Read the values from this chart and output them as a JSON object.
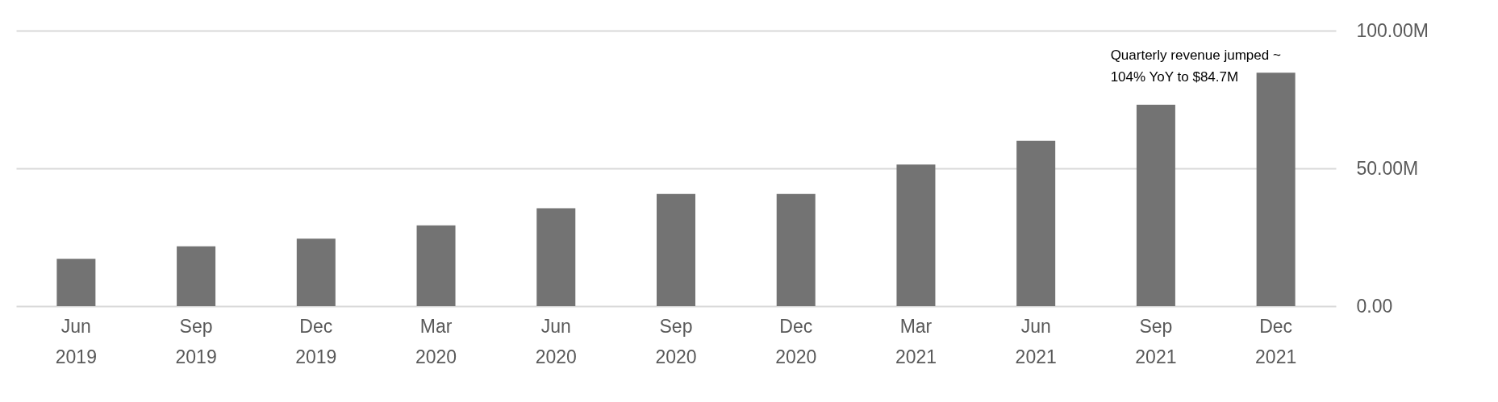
{
  "chart_data": {
    "type": "bar",
    "categories": [
      "Jun 2019",
      "Sep 2019",
      "Dec 2019",
      "Mar 2020",
      "Jun 2020",
      "Sep 2020",
      "Dec 2020",
      "Mar 2021",
      "Jun 2021",
      "Sep 2021",
      "Dec 2021"
    ],
    "values": [
      17.2,
      21.7,
      24.5,
      29.3,
      35.5,
      40.7,
      40.7,
      51.4,
      60,
      73.1,
      84.7
    ],
    "color": "#737373",
    "ylim": [
      0,
      100
    ],
    "yticks": [
      {
        "value": 0,
        "label": "0.00"
      },
      {
        "value": 50,
        "label": "50.00M"
      },
      {
        "value": 100,
        "label": "100.00M"
      }
    ],
    "grid": "y",
    "annotations": [
      {
        "text": "Quarterly revenue jumped ~\n104% YoY to $84.7M",
        "x": "Dec 2021",
        "y": 84.7
      }
    ]
  }
}
